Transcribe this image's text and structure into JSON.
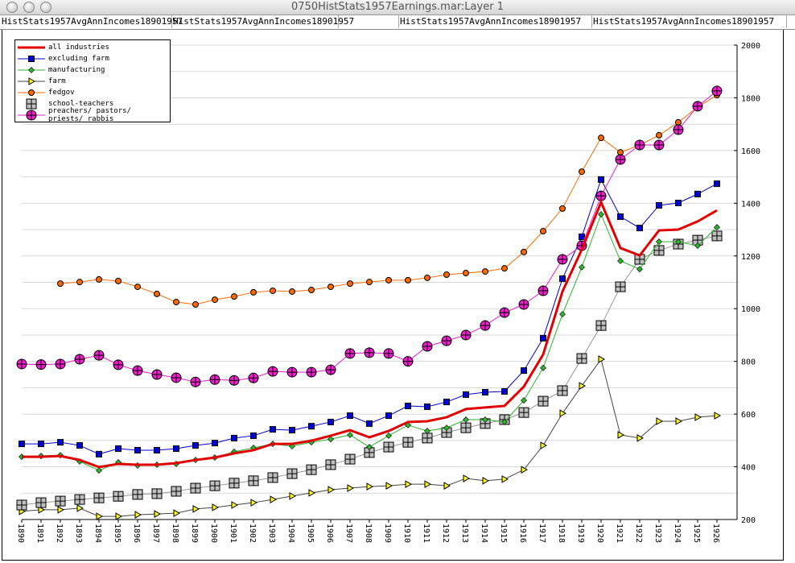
{
  "window": {
    "title": "0750HistStats1957Earnings.mar:Layer 1"
  },
  "header": {
    "cells": [
      "HistStats1957AvgAnnIncomes18901957",
      "HistStats1957AvgAnnIncomes18901957",
      "",
      "HistStats1957AvgAnnIncomes18901957",
      "HistStats1957AvgAnnIncomes18901957"
    ]
  },
  "chart_data": {
    "type": "line",
    "x": [
      1890,
      1891,
      1892,
      1893,
      1894,
      1895,
      1896,
      1897,
      1898,
      1899,
      1900,
      1901,
      1902,
      1903,
      1904,
      1905,
      1906,
      1907,
      1908,
      1909,
      1910,
      1911,
      1912,
      1913,
      1914,
      1915,
      1916,
      1917,
      1918,
      1919,
      1920,
      1921,
      1922,
      1923,
      1924,
      1925,
      1926
    ],
    "xlabel": "",
    "ylabel": "",
    "ylim": [
      200,
      2000
    ],
    "yticks": [
      200,
      400,
      600,
      800,
      1000,
      1200,
      1400,
      1600,
      1800,
      2000
    ],
    "y_axis_side": "right",
    "grid": true,
    "legend": "top-left",
    "series": [
      {
        "name": "all industries",
        "color": "#e00000",
        "marker": "none",
        "values": [
          438,
          438,
          441,
          426,
          399,
          411,
          408,
          408,
          414,
          426,
          435,
          451,
          463,
          487,
          487,
          499,
          518,
          539,
          512,
          536,
          570,
          573,
          588,
          619,
          625,
          631,
          704,
          826,
          1065,
          1224,
          1404,
          1230,
          1202,
          1297,
          1300,
          1331,
          1373
        ]
      },
      {
        "name": "excluding farm",
        "color": "#0000cc",
        "marker": "square",
        "values": [
          487,
          487,
          493,
          481,
          448,
          469,
          463,
          463,
          469,
          481,
          490,
          509,
          518,
          542,
          539,
          554,
          570,
          594,
          564,
          594,
          631,
          628,
          646,
          674,
          683,
          686,
          765,
          888,
          1114,
          1273,
          1490,
          1349,
          1306,
          1392,
          1401,
          1435,
          1474
        ]
      },
      {
        "name": "manufacturing",
        "color": "#2fb52f",
        "marker": "diamond",
        "values": [
          438,
          441,
          444,
          420,
          386,
          417,
          405,
          408,
          411,
          426,
          435,
          457,
          472,
          487,
          478,
          493,
          505,
          521,
          475,
          518,
          558,
          536,
          548,
          579,
          579,
          570,
          652,
          775,
          979,
          1157,
          1358,
          1181,
          1150,
          1254,
          1254,
          1239,
          1309
        ]
      },
      {
        "name": "farm",
        "color": "#444444",
        "marker": "triangle",
        "values": [
          231,
          237,
          237,
          243,
          212,
          212,
          218,
          221,
          224,
          240,
          246,
          255,
          264,
          276,
          289,
          301,
          313,
          319,
          325,
          328,
          334,
          334,
          328,
          356,
          347,
          353,
          389,
          481,
          603,
          707,
          808,
          521,
          509,
          573,
          573,
          588,
          594
        ]
      },
      {
        "name": "fedgov",
        "color": "#ff6a00",
        "marker": "circle",
        "values": [
          null,
          null,
          1095,
          1101,
          1111,
          1105,
          1083,
          1056,
          1025,
          1016,
          1034,
          1046,
          1062,
          1068,
          1065,
          1071,
          1083,
          1095,
          1101,
          1108,
          1108,
          1117,
          1129,
          1135,
          1141,
          1153,
          1215,
          1294,
          1380,
          1520,
          1648,
          1593,
          1621,
          1658,
          1707,
          1765,
          1810
        ]
      },
      {
        "name": "school-teachers",
        "color": "#999999",
        "marker": "boxcross",
        "values": [
          255,
          264,
          270,
          276,
          282,
          288,
          295,
          298,
          307,
          319,
          328,
          338,
          347,
          359,
          374,
          389,
          408,
          429,
          454,
          475,
          493,
          509,
          530,
          548,
          564,
          579,
          606,
          649,
          689,
          811,
          936,
          1083,
          1187,
          1221,
          1245,
          1260,
          1276
        ]
      },
      {
        "name": "preachers/ pastors/ priests/ rabbis",
        "color": "#ee1ecc",
        "marker": "circlecross",
        "values": [
          790,
          788,
          790,
          808,
          823,
          787,
          765,
          750,
          738,
          722,
          731,
          728,
          737,
          762,
          759,
          759,
          768,
          830,
          833,
          830,
          800,
          857,
          878,
          900,
          936,
          985,
          1016,
          1068,
          1187,
          1239,
          1428,
          1566,
          1621,
          1621,
          1679,
          1768,
          1826
        ]
      }
    ]
  }
}
